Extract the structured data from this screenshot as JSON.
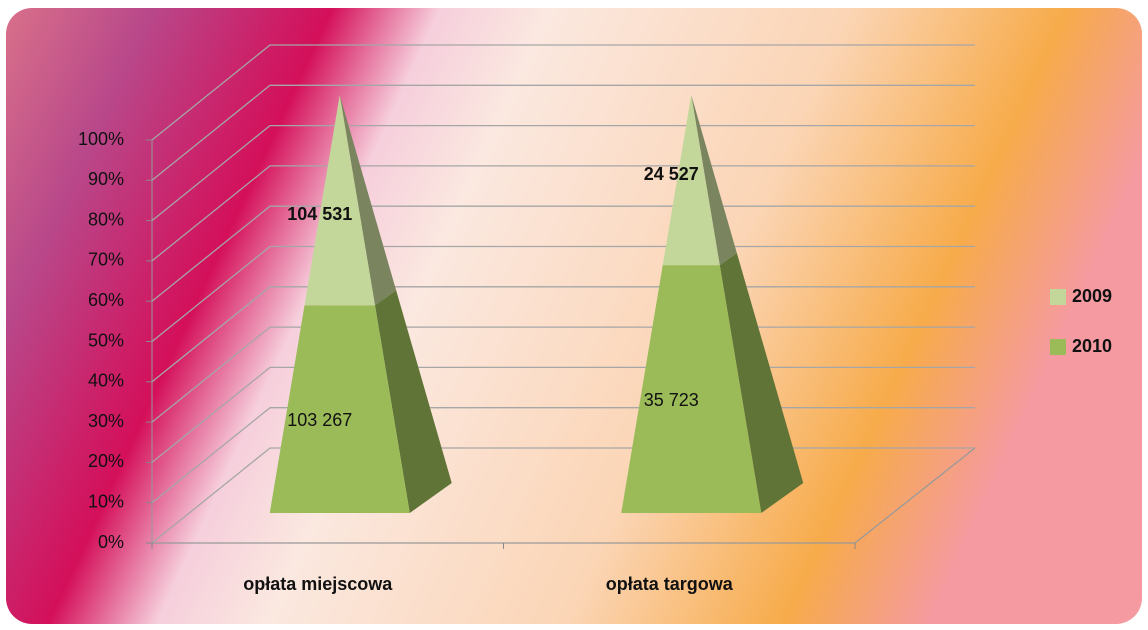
{
  "chart_data": {
    "type": "pyramid",
    "stacking": "percent",
    "categories": [
      "opłata miejscowa",
      "opłata targowa"
    ],
    "series": [
      {
        "name": "2009",
        "color": "#c4d79b",
        "values": [
          104531,
          24527
        ],
        "value_labels": [
          "104 531",
          "24 527"
        ]
      },
      {
        "name": "2010",
        "color": "#9bbb59",
        "values": [
          103267,
          35723
        ],
        "value_labels": [
          "103 267",
          "35 723"
        ]
      }
    ],
    "ylim": [
      0,
      100
    ],
    "yticks": [
      {
        "value": 0,
        "label": "0%"
      },
      {
        "value": 10,
        "label": "10%"
      },
      {
        "value": 20,
        "label": "20%"
      },
      {
        "value": 30,
        "label": "30%"
      },
      {
        "value": 40,
        "label": "40%"
      },
      {
        "value": 50,
        "label": "50%"
      },
      {
        "value": 60,
        "label": "60%"
      },
      {
        "value": 70,
        "label": "70%"
      },
      {
        "value": 80,
        "label": "80%"
      },
      {
        "value": 90,
        "label": "90%"
      },
      {
        "value": 100,
        "label": "100%"
      }
    ],
    "grid": true,
    "legend": "right"
  }
}
